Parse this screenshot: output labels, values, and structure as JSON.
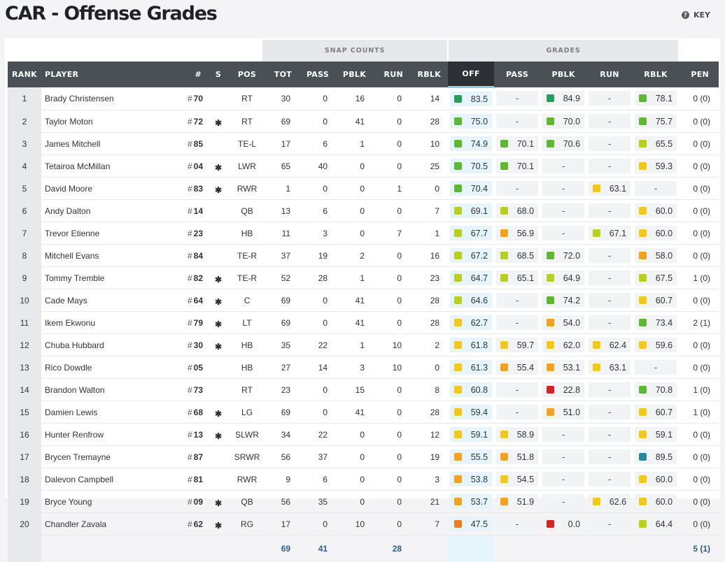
{
  "page": {
    "title": "CAR - Offense Grades",
    "key_label": "KEY"
  },
  "colors": {
    "green_dark": "#2a9d5c",
    "green": "#5eb833",
    "lime": "#b9cf1f",
    "yellow": "#f2c81a",
    "orange": "#f5a01f",
    "dark_orange": "#ec7e1d",
    "red": "#d42424",
    "teal": "#2787a0"
  },
  "groups": {
    "snap_counts": "SNAP COUNTS",
    "grades": "GRADES"
  },
  "columns": [
    "RANK",
    "PLAYER",
    "#",
    "S",
    "POS",
    "TOT",
    "PASS",
    "PBLK",
    "RUN",
    "RBLK",
    "OFF",
    "PASS",
    "PBLK",
    "RUN",
    "RBLK",
    "PEN"
  ],
  "jersey_prefix": "#",
  "starter_mark": "✱",
  "empty_grade": "-",
  "rows": [
    {
      "rank": "1",
      "player": "Brady Christensen",
      "jersey": "70",
      "starter": false,
      "pos": "RT",
      "tot": "30",
      "pass": "0",
      "pblk": "16",
      "run": "0",
      "rblk": "14",
      "off": {
        "v": "83.5",
        "c": "green_dark"
      },
      "g_pass": null,
      "g_pblk": {
        "v": "84.9",
        "c": "green_dark"
      },
      "g_run": null,
      "g_rblk": {
        "v": "78.1",
        "c": "green"
      },
      "pen": "0 (0)"
    },
    {
      "rank": "2",
      "player": "Taylor Moton",
      "jersey": "72",
      "starter": true,
      "pos": "RT",
      "tot": "69",
      "pass": "0",
      "pblk": "41",
      "run": "0",
      "rblk": "28",
      "off": {
        "v": "75.0",
        "c": "green"
      },
      "g_pass": null,
      "g_pblk": {
        "v": "70.0",
        "c": "green"
      },
      "g_run": null,
      "g_rblk": {
        "v": "75.7",
        "c": "green"
      },
      "pen": "0 (0)"
    },
    {
      "rank": "3",
      "player": "James Mitchell",
      "jersey": "85",
      "starter": false,
      "pos": "TE-L",
      "tot": "17",
      "pass": "6",
      "pblk": "1",
      "run": "0",
      "rblk": "10",
      "off": {
        "v": "74.9",
        "c": "green"
      },
      "g_pass": {
        "v": "70.1",
        "c": "green"
      },
      "g_pblk": {
        "v": "70.6",
        "c": "green"
      },
      "g_run": null,
      "g_rblk": {
        "v": "65.5",
        "c": "lime"
      },
      "pen": "0 (0)"
    },
    {
      "rank": "4",
      "player": "Tetairoa McMillan",
      "jersey": "04",
      "starter": true,
      "pos": "LWR",
      "tot": "65",
      "pass": "40",
      "pblk": "0",
      "run": "0",
      "rblk": "25",
      "off": {
        "v": "70.5",
        "c": "green"
      },
      "g_pass": {
        "v": "70.1",
        "c": "green"
      },
      "g_pblk": null,
      "g_run": null,
      "g_rblk": {
        "v": "59.3",
        "c": "yellow"
      },
      "pen": "0 (0)"
    },
    {
      "rank": "5",
      "player": "David Moore",
      "jersey": "83",
      "starter": true,
      "pos": "RWR",
      "tot": "1",
      "pass": "0",
      "pblk": "0",
      "run": "1",
      "rblk": "0",
      "off": {
        "v": "70.4",
        "c": "green"
      },
      "g_pass": null,
      "g_pblk": null,
      "g_run": {
        "v": "63.1",
        "c": "yellow"
      },
      "g_rblk": null,
      "pen": "0 (0)"
    },
    {
      "rank": "6",
      "player": "Andy Dalton",
      "jersey": "14",
      "starter": false,
      "pos": "QB",
      "tot": "13",
      "pass": "6",
      "pblk": "0",
      "run": "0",
      "rblk": "7",
      "off": {
        "v": "69.1",
        "c": "lime"
      },
      "g_pass": {
        "v": "68.0",
        "c": "lime"
      },
      "g_pblk": null,
      "g_run": null,
      "g_rblk": {
        "v": "60.0",
        "c": "yellow"
      },
      "pen": "0 (0)"
    },
    {
      "rank": "7",
      "player": "Trevor Etienne",
      "jersey": "23",
      "starter": false,
      "pos": "HB",
      "tot": "11",
      "pass": "3",
      "pblk": "0",
      "run": "7",
      "rblk": "1",
      "off": {
        "v": "67.7",
        "c": "lime"
      },
      "g_pass": {
        "v": "56.9",
        "c": "orange"
      },
      "g_pblk": null,
      "g_run": {
        "v": "67.1",
        "c": "lime"
      },
      "g_rblk": {
        "v": "60.0",
        "c": "yellow"
      },
      "pen": "0 (0)"
    },
    {
      "rank": "8",
      "player": "Mitchell Evans",
      "jersey": "84",
      "starter": false,
      "pos": "TE-R",
      "tot": "37",
      "pass": "19",
      "pblk": "2",
      "run": "0",
      "rblk": "16",
      "off": {
        "v": "67.2",
        "c": "lime"
      },
      "g_pass": {
        "v": "68.5",
        "c": "lime"
      },
      "g_pblk": {
        "v": "72.0",
        "c": "green"
      },
      "g_run": null,
      "g_rblk": {
        "v": "58.0",
        "c": "orange"
      },
      "pen": "0 (0)"
    },
    {
      "rank": "9",
      "player": "Tommy Tremble",
      "jersey": "82",
      "starter": true,
      "pos": "TE-R",
      "tot": "52",
      "pass": "28",
      "pblk": "1",
      "run": "0",
      "rblk": "23",
      "off": {
        "v": "64.7",
        "c": "lime"
      },
      "g_pass": {
        "v": "65.1",
        "c": "lime"
      },
      "g_pblk": {
        "v": "64.9",
        "c": "lime"
      },
      "g_run": null,
      "g_rblk": {
        "v": "67.5",
        "c": "lime"
      },
      "pen": "1 (0)"
    },
    {
      "rank": "10",
      "player": "Cade Mays",
      "jersey": "64",
      "starter": true,
      "pos": "C",
      "tot": "69",
      "pass": "0",
      "pblk": "41",
      "run": "0",
      "rblk": "28",
      "off": {
        "v": "64.6",
        "c": "lime"
      },
      "g_pass": null,
      "g_pblk": {
        "v": "74.2",
        "c": "green"
      },
      "g_run": null,
      "g_rblk": {
        "v": "60.7",
        "c": "yellow"
      },
      "pen": "0 (0)"
    },
    {
      "rank": "11",
      "player": "Ikem Ekwonu",
      "jersey": "79",
      "starter": true,
      "pos": "LT",
      "tot": "69",
      "pass": "0",
      "pblk": "41",
      "run": "0",
      "rblk": "28",
      "off": {
        "v": "62.7",
        "c": "yellow"
      },
      "g_pass": null,
      "g_pblk": {
        "v": "54.0",
        "c": "orange"
      },
      "g_run": null,
      "g_rblk": {
        "v": "73.4",
        "c": "green"
      },
      "pen": "2 (1)"
    },
    {
      "rank": "12",
      "player": "Chuba Hubbard",
      "jersey": "30",
      "starter": true,
      "pos": "HB",
      "tot": "35",
      "pass": "22",
      "pblk": "1",
      "run": "10",
      "rblk": "2",
      "off": {
        "v": "61.8",
        "c": "yellow"
      },
      "g_pass": {
        "v": "59.7",
        "c": "yellow"
      },
      "g_pblk": {
        "v": "62.0",
        "c": "yellow"
      },
      "g_run": {
        "v": "62.4",
        "c": "yellow"
      },
      "g_rblk": {
        "v": "59.6",
        "c": "yellow"
      },
      "pen": "0 (0)"
    },
    {
      "rank": "13",
      "player": "Rico Dowdle",
      "jersey": "05",
      "starter": false,
      "pos": "HB",
      "tot": "27",
      "pass": "14",
      "pblk": "3",
      "run": "10",
      "rblk": "0",
      "off": {
        "v": "61.3",
        "c": "yellow"
      },
      "g_pass": {
        "v": "55.4",
        "c": "orange"
      },
      "g_pblk": {
        "v": "53.1",
        "c": "orange"
      },
      "g_run": {
        "v": "63.1",
        "c": "yellow"
      },
      "g_rblk": null,
      "pen": "0 (0)"
    },
    {
      "rank": "14",
      "player": "Brandon Walton",
      "jersey": "73",
      "starter": false,
      "pos": "RT",
      "tot": "23",
      "pass": "0",
      "pblk": "15",
      "run": "0",
      "rblk": "8",
      "off": {
        "v": "60.8",
        "c": "yellow"
      },
      "g_pass": null,
      "g_pblk": {
        "v": "22.8",
        "c": "red"
      },
      "g_run": null,
      "g_rblk": {
        "v": "70.8",
        "c": "green"
      },
      "pen": "1 (0)"
    },
    {
      "rank": "15",
      "player": "Damien Lewis",
      "jersey": "68",
      "starter": true,
      "pos": "LG",
      "tot": "69",
      "pass": "0",
      "pblk": "41",
      "run": "0",
      "rblk": "28",
      "off": {
        "v": "59.4",
        "c": "yellow"
      },
      "g_pass": null,
      "g_pblk": {
        "v": "51.0",
        "c": "orange"
      },
      "g_run": null,
      "g_rblk": {
        "v": "60.7",
        "c": "yellow"
      },
      "pen": "1 (0)"
    },
    {
      "rank": "16",
      "player": "Hunter Renfrow",
      "jersey": "13",
      "starter": true,
      "pos": "SLWR",
      "tot": "34",
      "pass": "22",
      "pblk": "0",
      "run": "0",
      "rblk": "12",
      "off": {
        "v": "59.1",
        "c": "yellow"
      },
      "g_pass": {
        "v": "58.9",
        "c": "yellow"
      },
      "g_pblk": null,
      "g_run": null,
      "g_rblk": {
        "v": "59.1",
        "c": "yellow"
      },
      "pen": "0 (0)"
    },
    {
      "rank": "17",
      "player": "Brycen Tremayne",
      "jersey": "87",
      "starter": false,
      "pos": "SRWR",
      "tot": "56",
      "pass": "37",
      "pblk": "0",
      "run": "0",
      "rblk": "19",
      "off": {
        "v": "55.5",
        "c": "orange"
      },
      "g_pass": {
        "v": "51.8",
        "c": "orange"
      },
      "g_pblk": null,
      "g_run": null,
      "g_rblk": {
        "v": "89.5",
        "c": "teal"
      },
      "pen": "0 (0)"
    },
    {
      "rank": "18",
      "player": "Dalevon Campbell",
      "jersey": "81",
      "starter": false,
      "pos": "RWR",
      "tot": "9",
      "pass": "6",
      "pblk": "0",
      "run": "0",
      "rblk": "3",
      "off": {
        "v": "53.8",
        "c": "orange"
      },
      "g_pass": {
        "v": "54.5",
        "c": "yellow"
      },
      "g_pblk": null,
      "g_run": null,
      "g_rblk": {
        "v": "60.0",
        "c": "yellow"
      },
      "pen": "0 (0)"
    },
    {
      "rank": "19",
      "player": "Bryce Young",
      "jersey": "09",
      "starter": true,
      "pos": "QB",
      "tot": "56",
      "pass": "35",
      "pblk": "0",
      "run": "0",
      "rblk": "21",
      "off": {
        "v": "53.7",
        "c": "orange"
      },
      "g_pass": {
        "v": "51.9",
        "c": "orange"
      },
      "g_pblk": null,
      "g_run": {
        "v": "62.6",
        "c": "yellow"
      },
      "g_rblk": {
        "v": "60.0",
        "c": "yellow"
      },
      "pen": "0 (0)"
    },
    {
      "rank": "20",
      "player": "Chandler Zavala",
      "jersey": "62",
      "starter": true,
      "pos": "RG",
      "tot": "17",
      "pass": "0",
      "pblk": "10",
      "run": "0",
      "rblk": "7",
      "off": {
        "v": "47.5",
        "c": "dark_orange"
      },
      "g_pass": null,
      "g_pblk": {
        "v": "0.0",
        "c": "red"
      },
      "g_run": null,
      "g_rblk": {
        "v": "64.4",
        "c": "lime"
      },
      "pen": "0 (0)"
    }
  ],
  "totals": {
    "tot": "69",
    "pass": "41",
    "run": "28",
    "pen": "5 (1)"
  }
}
